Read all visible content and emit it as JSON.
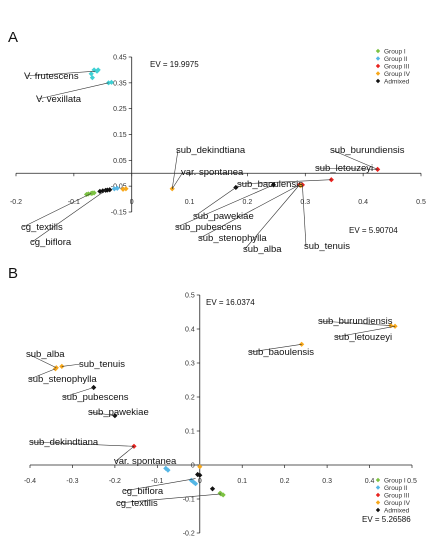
{
  "chart_data": [
    {
      "panel": "A",
      "type": "scatter",
      "ev_x_label": "EV = 5.90704",
      "ev_y_label": "EV = 19.9975",
      "xlim": [
        -0.2,
        0.5
      ],
      "ylim": [
        -0.15,
        0.45
      ],
      "x_ticks": [
        "-0.2",
        "-0.1",
        "0",
        "0.1",
        "0.2",
        "0.3",
        "0.4",
        "0.5"
      ],
      "y_ticks": [
        "0.45",
        "0.35",
        "0.25",
        "0.15",
        "0.05",
        "-0.05",
        "-0.15"
      ],
      "legend": [
        "Group I",
        "Group II",
        "Group III",
        "Group IV",
        "Admixed"
      ],
      "series": [
        {
          "name": "Group I",
          "color": "#7cc242",
          "points": [
            [
              -0.075,
              -0.08
            ],
            [
              -0.07,
              -0.078
            ],
            [
              -0.068,
              -0.077
            ],
            [
              -0.065,
              -0.076
            ],
            [
              -0.078,
              -0.082
            ]
          ]
        },
        {
          "name": "Group II",
          "color": "#55b7e6",
          "points": [
            [
              -0.03,
              -0.06
            ],
            [
              -0.025,
              -0.058
            ]
          ]
        },
        {
          "name": "Group III",
          "color": "#e8231f",
          "points": [
            [
              0.345,
              -0.025
            ],
            [
              0.425,
              0.015
            ],
            [
              0.29,
              -0.045
            ],
            [
              0.295,
              -0.045
            ]
          ]
        },
        {
          "name": "Group IV",
          "color": "#f7a81b",
          "points": [
            [
              0.07,
              -0.06
            ],
            [
              -0.015,
              -0.062
            ],
            [
              -0.01,
              -0.06
            ],
            [
              0.292,
              -0.048
            ]
          ]
        },
        {
          "name": "V. frutescens",
          "color": "#3fd0d4",
          "points": [
            [
              -0.065,
              0.4
            ],
            [
              -0.06,
              0.395
            ],
            [
              -0.058,
              0.4
            ],
            [
              -0.07,
              0.385
            ],
            [
              -0.068,
              0.37
            ]
          ]
        },
        {
          "name": "V. vexillata",
          "color": "#3fd0d4",
          "points": [
            [
              -0.04,
              0.35
            ],
            [
              -0.035,
              0.352
            ]
          ]
        },
        {
          "name": "Admixed",
          "color": "#111111",
          "points": [
            [
              -0.05,
              -0.068
            ],
            [
              -0.045,
              -0.066
            ],
            [
              -0.042,
              -0.065
            ],
            [
              -0.038,
              -0.064
            ],
            [
              -0.055,
              -0.07
            ],
            [
              0.18,
              -0.055
            ],
            [
              0.245,
              -0.045
            ]
          ]
        }
      ],
      "annotations": [
        {
          "text": "V. frutescens",
          "x": -0.063,
          "y": 0.395
        },
        {
          "text": "V. vexillata",
          "x": -0.04,
          "y": 0.35
        },
        {
          "text": "sub_dekindtiana",
          "x": 0.07,
          "y": -0.06
        },
        {
          "text": "var. spontanea",
          "x": 0.07,
          "y": -0.06
        },
        {
          "text": "sub_burundiensis",
          "x": 0.425,
          "y": 0.015
        },
        {
          "text": "sub_letouzeyi",
          "x": 0.425,
          "y": 0.015
        },
        {
          "text": "sub_baoulensis",
          "x": 0.345,
          "y": -0.025
        },
        {
          "text": "sub_pawekiae",
          "x": 0.18,
          "y": -0.055
        },
        {
          "text": "sub_pubescens",
          "x": 0.245,
          "y": -0.045
        },
        {
          "text": "sub_stenophylla",
          "x": 0.29,
          "y": -0.045
        },
        {
          "text": "sub_alba",
          "x": 0.29,
          "y": -0.045
        },
        {
          "text": "sub_tenuis",
          "x": 0.295,
          "y": -0.045
        },
        {
          "text": "cg_textilis",
          "x": -0.07,
          "y": -0.078
        },
        {
          "text": "cg_biflora",
          "x": -0.045,
          "y": -0.066
        }
      ]
    },
    {
      "panel": "B",
      "type": "scatter",
      "ev_x_label": "EV = 5.26586",
      "ev_y_label": "EV = 16.0374",
      "xlim": [
        -0.4,
        0.5
      ],
      "ylim": [
        -0.2,
        0.5
      ],
      "x_ticks": [
        "-0.4",
        "-0.3",
        "-0.2",
        "-0.1",
        "0",
        "0.1",
        "0.2",
        "0.3",
        "0.4",
        "0.5"
      ],
      "y_ticks": [
        "0.5",
        "0.4",
        "0.3",
        "0.2",
        "0.1",
        "0",
        "-0.1",
        "-0.2"
      ],
      "legend": [
        "Group I",
        "Group II",
        "Group III",
        "Group IV",
        "Admixed"
      ],
      "series": [
        {
          "name": "Group I",
          "color": "#7cc242",
          "points": [
            [
              0.05,
              -0.085
            ],
            [
              0.055,
              -0.088
            ],
            [
              0.048,
              -0.083
            ]
          ]
        },
        {
          "name": "Group II",
          "color": "#55b7e6",
          "points": [
            [
              -0.08,
              -0.01
            ],
            [
              -0.075,
              -0.015
            ],
            [
              -0.02,
              -0.045
            ],
            [
              -0.015,
              -0.05
            ],
            [
              -0.01,
              -0.055
            ]
          ]
        },
        {
          "name": "Group III",
          "color": "#e8231f",
          "points": [
            [
              -0.155,
              0.055
            ]
          ]
        },
        {
          "name": "Group IV",
          "color": "#f7a81b",
          "points": [
            [
              0.45,
              0.41
            ],
            [
              0.46,
              0.408
            ],
            [
              0.24,
              0.355
            ],
            [
              -0.338,
              0.286
            ],
            [
              -0.34,
              0.283
            ],
            [
              -0.325,
              0.29
            ],
            [
              0.0,
              -0.005
            ]
          ]
        },
        {
          "name": "Admixed",
          "color": "#111111",
          "points": [
            [
              -0.25,
              0.228
            ],
            [
              -0.2,
              0.145
            ],
            [
              -0.005,
              -0.028
            ],
            [
              0.0,
              -0.03
            ],
            [
              0.03,
              -0.07
            ]
          ]
        }
      ],
      "annotations": [
        {
          "text": "sub_burundiensis",
          "x": 0.45,
          "y": 0.41
        },
        {
          "text": "sub_letouzeyi",
          "x": 0.46,
          "y": 0.408
        },
        {
          "text": "sub_baoulensis",
          "x": 0.24,
          "y": 0.355
        },
        {
          "text": "sub_alba",
          "x": -0.338,
          "y": 0.286
        },
        {
          "text": "sub_tenuis",
          "x": -0.325,
          "y": 0.29
        },
        {
          "text": "sub_stenophylla",
          "x": -0.34,
          "y": 0.283
        },
        {
          "text": "sub_pubescens",
          "x": -0.25,
          "y": 0.228
        },
        {
          "text": "sub_pawekiae",
          "x": -0.2,
          "y": 0.145
        },
        {
          "text": "sub_dekindtiana",
          "x": -0.155,
          "y": 0.055
        },
        {
          "text": "var. spontanea",
          "x": -0.155,
          "y": 0.055
        },
        {
          "text": "cg_biflora",
          "x": -0.01,
          "y": -0.04
        },
        {
          "text": "cg_textilis",
          "x": 0.05,
          "y": -0.085
        }
      ]
    }
  ]
}
